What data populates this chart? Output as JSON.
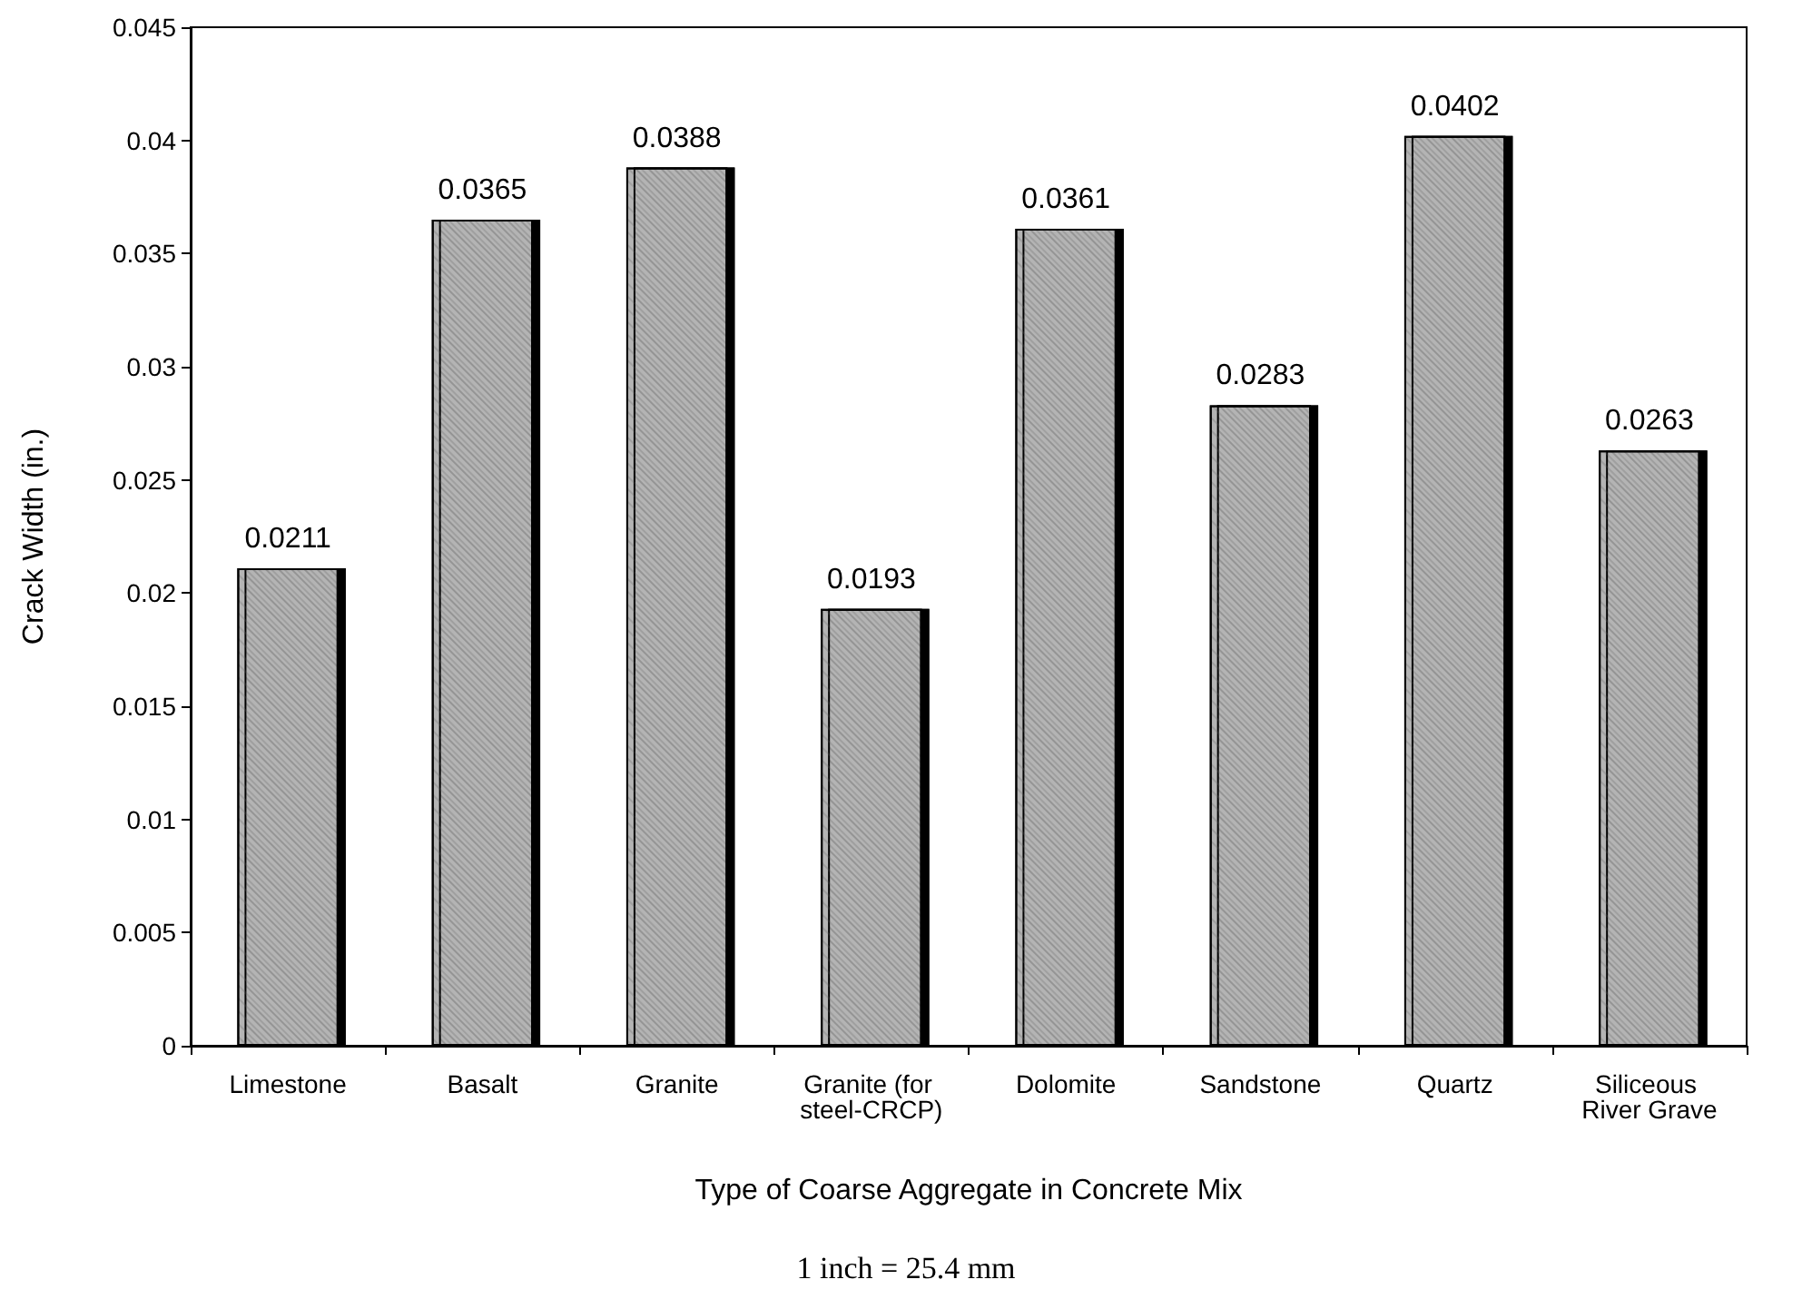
{
  "chart_data": {
    "type": "bar",
    "xlabel": "Type of Coarse Aggregate in Concrete Mix",
    "ylabel": "Crack Width (in.)",
    "categories": [
      "Limestone",
      "Basalt",
      "Granite",
      "Granite (for steel-CRCP)",
      "Dolomite",
      "Sandstone",
      "Quartz",
      "Siliceous River Grave"
    ],
    "values": [
      0.0211,
      0.0365,
      0.0388,
      0.0193,
      0.0361,
      0.0283,
      0.0402,
      0.0263
    ],
    "color": "#b4b4b4",
    "ylim": [
      0,
      0.045
    ],
    "yticks": [
      0,
      0.005,
      0.01,
      0.015,
      0.02,
      0.025,
      0.03,
      0.035,
      0.04,
      0.045
    ],
    "grid": false,
    "data_labels": true,
    "annotations": [
      "1 inch = 25.4 mm"
    ]
  }
}
